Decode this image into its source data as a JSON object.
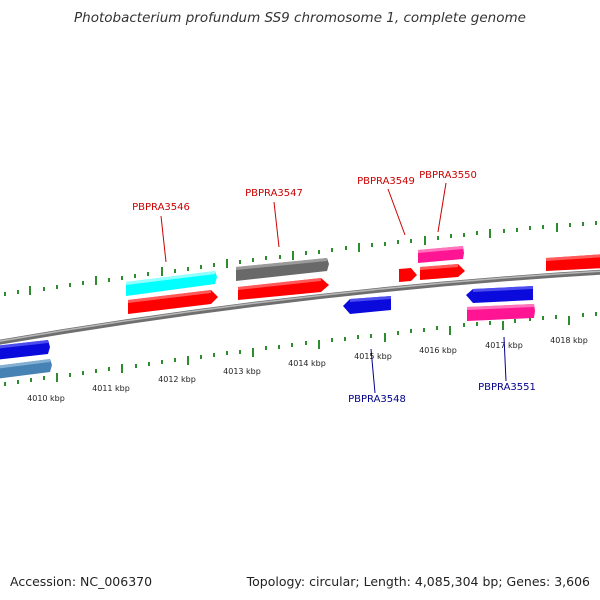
{
  "title": "Photobacterium profundum SS9 chromosome 1, complete genome",
  "footer": {
    "accession": "Accession: NC_006370",
    "summary": "Topology: circular; Length: 4,085,304 bp; Genes: 3,606"
  },
  "colors": {
    "backbone": "#8a8a8a",
    "tick": "#2e8b2e",
    "label_forward": "#cc0000",
    "label_reverse": "#00008b"
  },
  "scale_labels": [
    "4010 kbp",
    "4011 kbp",
    "4012 kbp",
    "4013 kbp",
    "4014 kbp",
    "4015 kbp",
    "4016 kbp",
    "4017 kbp",
    "4018 kbp"
  ],
  "gene_labels": [
    {
      "id": "PBPRA3546",
      "strand": "forward"
    },
    {
      "id": "PBPRA3547",
      "strand": "forward"
    },
    {
      "id": "PBPRA3549",
      "strand": "forward"
    },
    {
      "id": "PBPRA3550",
      "strand": "forward"
    },
    {
      "id": "PBPRA3548",
      "strand": "reverse"
    },
    {
      "id": "PBPRA3551",
      "strand": "reverse"
    }
  ]
}
